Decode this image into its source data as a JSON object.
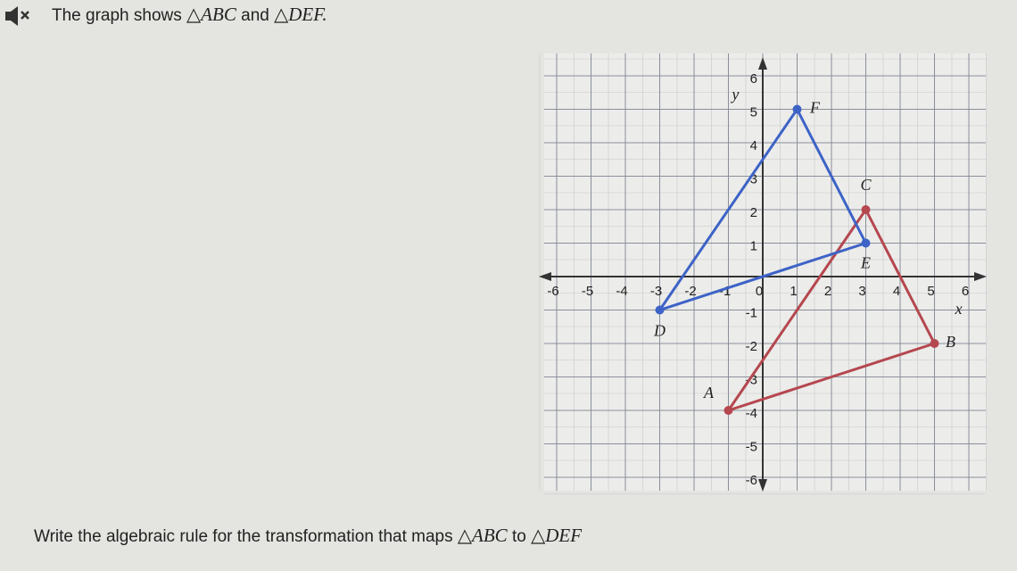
{
  "header": {
    "text": "The graph shows",
    "tri1": "△ABC",
    "and": "and",
    "tri2": "△DEF."
  },
  "footer": {
    "text": "Write the algebraic rule for the transformation that maps",
    "tri1": "△ABC",
    "to": "to",
    "tri2": "△DEF"
  },
  "chart_data": {
    "type": "polygon",
    "xlabel": "x",
    "ylabel": "y",
    "xlim": [
      -6,
      6
    ],
    "ylim": [
      -6,
      6
    ],
    "xticks": [
      -6,
      -5,
      -4,
      -3,
      -2,
      -1,
      0,
      1,
      2,
      3,
      4,
      5,
      6
    ],
    "yticks": [
      -6,
      -5,
      -4,
      -3,
      -2,
      -1,
      1,
      2,
      3,
      4,
      5,
      6
    ],
    "grid": true,
    "series": [
      {
        "color": "#b5474f",
        "x": [
          -1,
          5,
          3
        ],
        "values": [
          -4,
          -2,
          2
        ],
        "point_labels": [
          "A",
          "B",
          "C"
        ]
      },
      {
        "color": "#3d63c7",
        "x": [
          -3,
          3,
          1
        ],
        "values": [
          -1,
          1,
          5
        ],
        "point_labels": [
          "D",
          "E",
          "F"
        ]
      }
    ]
  }
}
